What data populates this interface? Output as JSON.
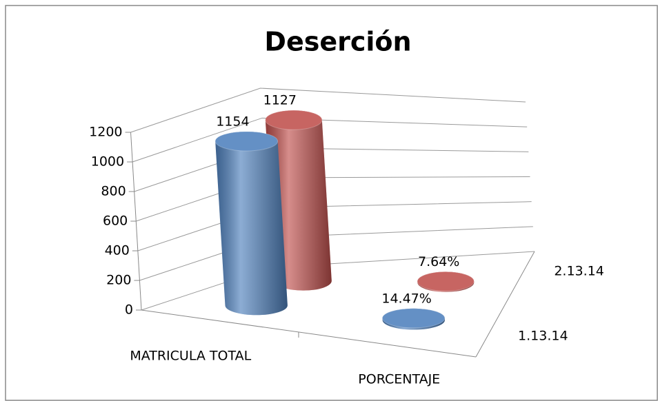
{
  "chart_data": {
    "type": "bar3d",
    "title": "Deserción",
    "categories": [
      "MATRICULA TOTAL",
      "PORCENTAJE"
    ],
    "series": [
      {
        "name": "1.13.14",
        "color": "#4f81bd",
        "values": [
          1154,
          14.47
        ],
        "value_labels": [
          "1154",
          "14.47%"
        ]
      },
      {
        "name": "2.13.14",
        "color": "#c0504d",
        "values": [
          1127,
          7.64
        ],
        "value_labels": [
          "1127",
          "7.64%"
        ]
      }
    ],
    "ylim": [
      0,
      1200
    ],
    "yticks": [
      0,
      200,
      400,
      600,
      800,
      1000,
      1200
    ],
    "grid": true
  }
}
